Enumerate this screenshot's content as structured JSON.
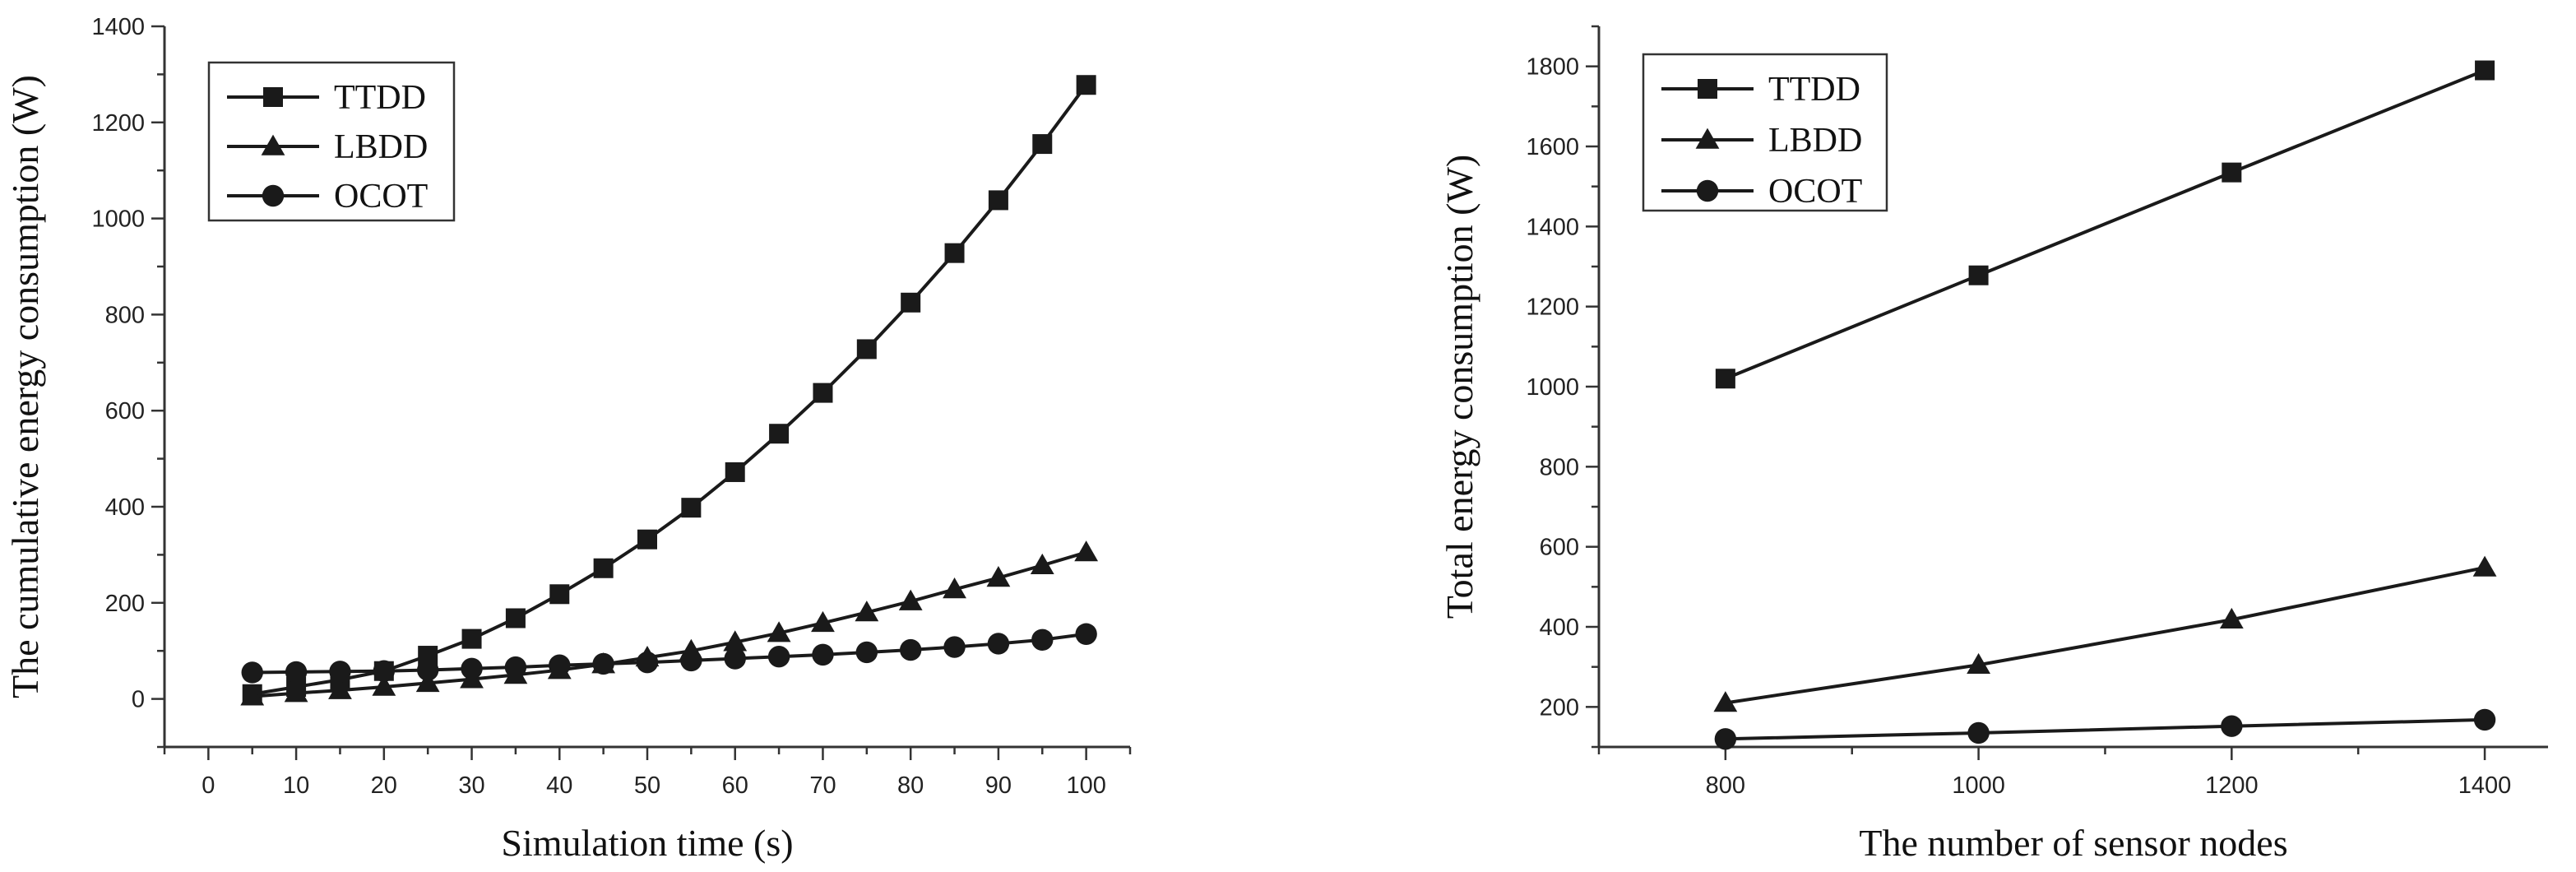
{
  "chart_data": [
    {
      "type": "line",
      "title": "",
      "xlabel": "Simulation time (s)",
      "ylabel": "The cumulative energy consumption (W)",
      "xlim": [
        -5,
        105
      ],
      "ylim": [
        -100,
        1400
      ],
      "xticks": [
        0,
        10,
        20,
        30,
        40,
        50,
        60,
        70,
        80,
        90,
        100
      ],
      "yticks": [
        0,
        200,
        400,
        600,
        800,
        1000,
        1200,
        1400
      ],
      "legend_position": "top-left",
      "x": [
        5,
        10,
        15,
        20,
        25,
        30,
        35,
        40,
        45,
        50,
        55,
        60,
        65,
        70,
        75,
        80,
        85,
        90,
        95,
        100
      ],
      "series": [
        {
          "name": "TTDD",
          "marker": "square",
          "values": [
            10,
            25,
            40,
            58,
            90,
            125,
            168,
            218,
            272,
            332,
            398,
            472,
            552,
            637,
            728,
            825,
            928,
            1038,
            1155,
            1278
          ]
        },
        {
          "name": "LBDD",
          "marker": "triangle",
          "values": [
            5,
            12,
            18,
            25,
            33,
            41,
            50,
            60,
            72,
            86,
            100,
            118,
            137,
            158,
            180,
            203,
            228,
            252,
            278,
            305
          ]
        },
        {
          "name": "OCOT",
          "marker": "circle",
          "values": [
            55,
            56,
            57,
            58,
            60,
            63,
            66,
            70,
            73,
            76,
            80,
            84,
            88,
            92,
            97,
            102,
            108,
            115,
            123,
            135
          ]
        }
      ]
    },
    {
      "type": "line",
      "title": "",
      "xlabel": "The number of sensor nodes",
      "ylabel": "Total energy consumption (W)",
      "xlim": [
        700,
        1450
      ],
      "ylim": [
        100,
        1900
      ],
      "xticks": [
        800,
        1000,
        1200,
        1400
      ],
      "yticks": [
        200,
        400,
        600,
        800,
        1000,
        1200,
        1400,
        1600,
        1800
      ],
      "legend_position": "top-left",
      "x": [
        800,
        1000,
        1200,
        1400
      ],
      "series": [
        {
          "name": "TTDD",
          "marker": "square",
          "values": [
            1020,
            1278,
            1535,
            1790
          ]
        },
        {
          "name": "LBDD",
          "marker": "triangle",
          "values": [
            210,
            305,
            418,
            548
          ]
        },
        {
          "name": "OCOT",
          "marker": "circle",
          "values": [
            120,
            135,
            152,
            168
          ]
        }
      ]
    }
  ],
  "colors": {
    "line": "#1a1a1a",
    "axis": "#333333",
    "background": "#ffffff"
  }
}
